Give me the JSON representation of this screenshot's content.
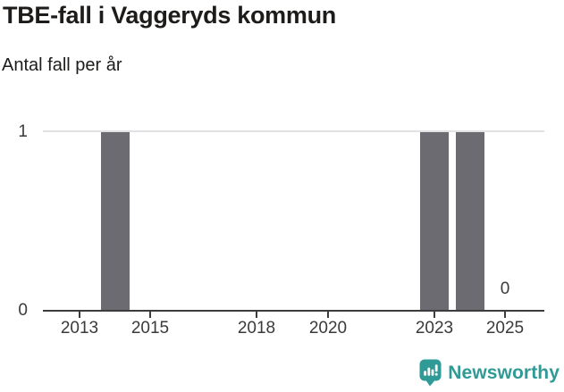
{
  "header": {
    "title": "TBE-fall i Vaggeryds kommun",
    "subtitle": "Antal fall per år"
  },
  "chart_data": {
    "type": "bar",
    "title": "TBE-fall i Vaggeryds kommun",
    "subtitle": "Antal fall per år",
    "xlabel": "",
    "ylabel": "Antal fall per år",
    "x": [
      2012,
      2013,
      2014,
      2015,
      2016,
      2017,
      2018,
      2019,
      2020,
      2021,
      2022,
      2023,
      2024,
      2025
    ],
    "values": [
      0,
      0,
      1,
      0,
      0,
      0,
      0,
      0,
      0,
      0,
      0,
      1,
      1,
      0
    ],
    "xlim": [
      2011.97,
      2026.1
    ],
    "ylim": [
      0,
      1
    ],
    "xticks": [
      2013,
      2015,
      2018,
      2020,
      2023,
      2025
    ],
    "yticks": [
      0,
      1
    ],
    "grid": true,
    "legend": "none",
    "annotations": [
      {
        "x": 2025,
        "y": 0,
        "label": "0"
      }
    ]
  },
  "footer": {
    "brand": "Newsworthy"
  },
  "colors": {
    "bar": "#6d6b72",
    "gridline": "#e3e1e4",
    "axis": "#3c3c3c",
    "tick_label": "#3a3a3a",
    "text": "#1d1c1a",
    "brand_teal": "#2f9a96"
  }
}
